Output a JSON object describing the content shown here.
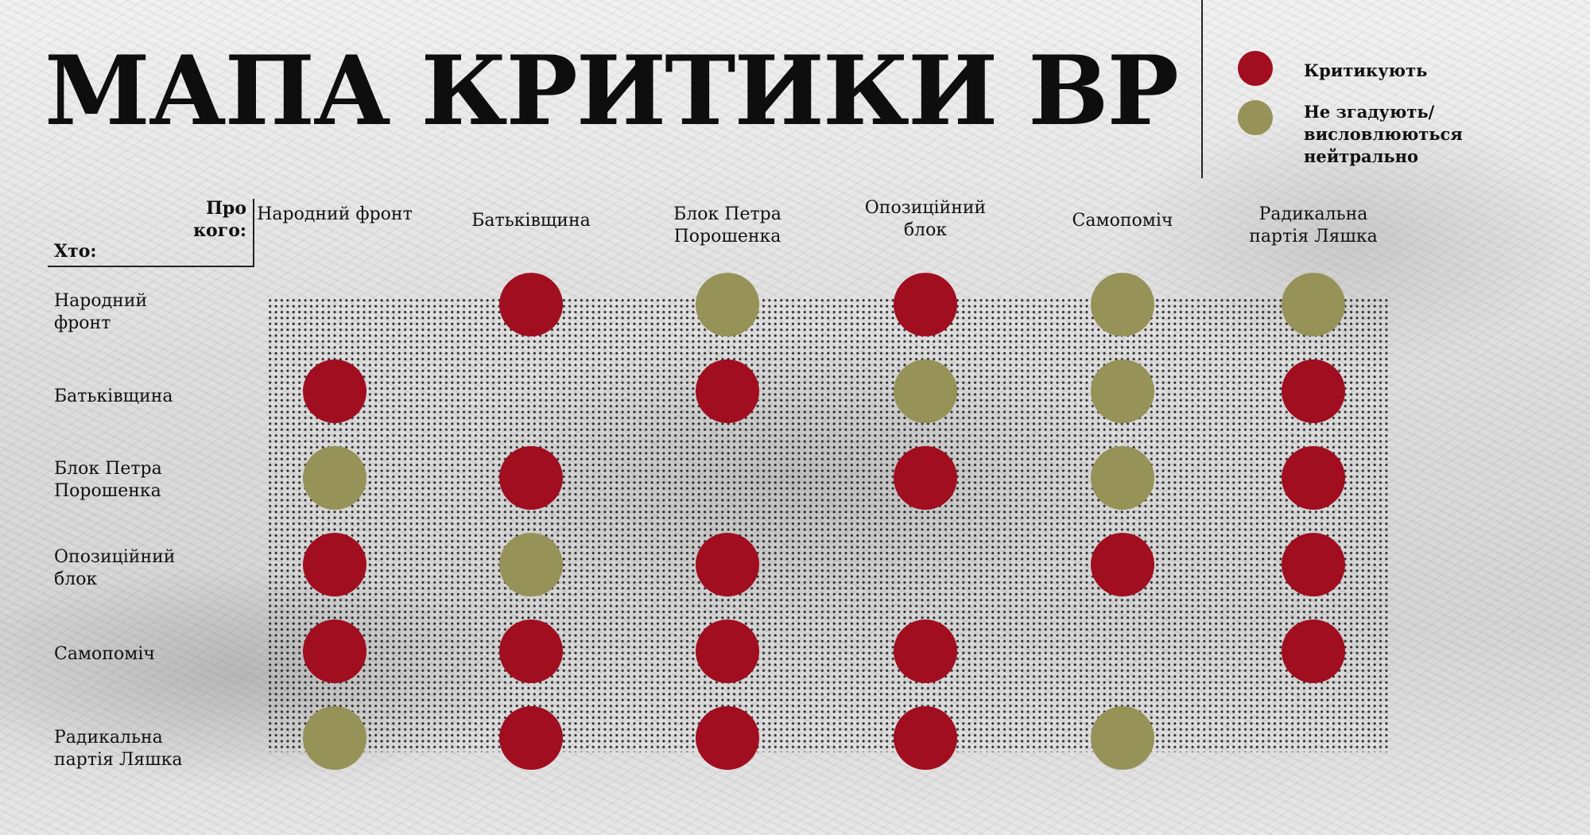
{
  "title": "МАПА КРИТИКИ ВР",
  "legend": {
    "critic_label": "Критикують",
    "neutral_label": "Не згадують/ висловлюються нейтрально",
    "critic_color": "#a00e20",
    "neutral_color": "#969258"
  },
  "axis": {
    "about_label": "Про кого:",
    "who_label": "Хто:"
  },
  "chart_data": {
    "type": "table",
    "title": "МАПА КРИТИКИ ВР",
    "column_axis_label": "Про кого:",
    "row_axis_label": "Хто:",
    "columns": [
      "Народний фронт",
      "Батьківщина",
      "Блок Петра Порошенка",
      "Опозиційний блок",
      "Самопоміч",
      "Радикальна партія Ляшка"
    ],
    "rows": [
      "Народний фронт",
      "Батьківщина",
      "Блок Петра Порошенка",
      "Опозиційний блок",
      "Самопоміч",
      "Радикальна партія Ляшка"
    ],
    "legend": [
      "Критикують",
      "Не згадують/ висловлюються нейтрально"
    ],
    "cells": [
      [
        null,
        "Критикують",
        "Не згадують/ висловлюються нейтрально",
        "Критикують",
        "Не згадують/ висловлюються нейтрально",
        "Не згадують/ висловлюються нейтрально"
      ],
      [
        "Критикують",
        null,
        "Критикують",
        "Не згадують/ висловлюються нейтрально",
        "Не згадують/ висловлюються нейтрально",
        "Критикують"
      ],
      [
        "Не згадують/ висловлюються нейтрально",
        "Критикують",
        null,
        "Критикують",
        "Не згадують/ висловлюються нейтрально",
        "Критикують"
      ],
      [
        "Критикують",
        "Не згадують/ висловлюються нейтрально",
        "Критикують",
        null,
        "Критикують",
        "Критикують"
      ],
      [
        "Критикують",
        "Критикують",
        "Критикують",
        "Критикують",
        null,
        "Критикують"
      ],
      [
        "Не згадують/ висловлюються нейтрально",
        "Критикують",
        "Критикують",
        "Критикують",
        "Не згадують/ висловлюються нейтрально",
        null
      ]
    ]
  }
}
